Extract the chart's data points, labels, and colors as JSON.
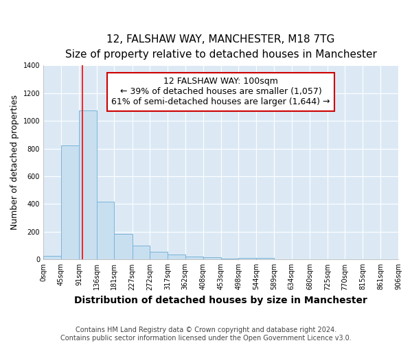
{
  "title1": "12, FALSHAW WAY, MANCHESTER, M18 7TG",
  "title2": "Size of property relative to detached houses in Manchester",
  "xlabel": "Distribution of detached houses by size in Manchester",
  "ylabel": "Number of detached properties",
  "bar_edges": [
    0,
    45,
    91,
    136,
    181,
    227,
    272,
    317,
    362,
    408,
    453,
    498,
    544,
    589,
    634,
    680,
    725,
    770,
    815,
    861,
    906
  ],
  "bar_heights": [
    25,
    825,
    1075,
    415,
    185,
    100,
    55,
    35,
    20,
    15,
    5,
    10,
    10,
    0,
    0,
    0,
    0,
    0,
    0,
    0
  ],
  "bar_color": "#c8dff0",
  "bar_edgecolor": "#7ab4d8",
  "red_line_x": 100,
  "annotation_text": "12 FALSHAW WAY: 100sqm\n← 39% of detached houses are smaller (1,057)\n61% of semi-detached houses are larger (1,644) →",
  "annotation_box_color": "white",
  "annotation_box_edgecolor": "#cc0000",
  "ylim": [
    0,
    1400
  ],
  "yticks": [
    0,
    200,
    400,
    600,
    800,
    1000,
    1200,
    1400
  ],
  "xtick_labels": [
    "0sqm",
    "45sqm",
    "91sqm",
    "136sqm",
    "181sqm",
    "227sqm",
    "272sqm",
    "317sqm",
    "362sqm",
    "408sqm",
    "453sqm",
    "498sqm",
    "544sqm",
    "589sqm",
    "634sqm",
    "680sqm",
    "725sqm",
    "770sqm",
    "815sqm",
    "861sqm",
    "906sqm"
  ],
  "footnote": "Contains HM Land Registry data © Crown copyright and database right 2024.\nContains public sector information licensed under the Open Government Licence v3.0.",
  "bg_color": "#ffffff",
  "plot_bg_color": "#dce9f5",
  "grid_color": "#ffffff",
  "title1_fontsize": 11,
  "title2_fontsize": 9.5,
  "xlabel_fontsize": 10,
  "ylabel_fontsize": 9,
  "annotation_fontsize": 9,
  "footnote_fontsize": 7
}
